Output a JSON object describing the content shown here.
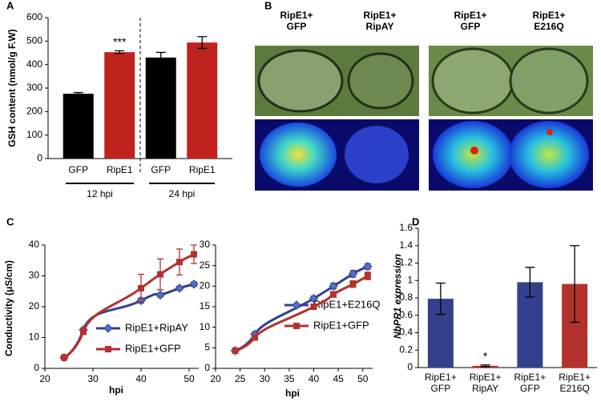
{
  "panel_labels": [
    "A",
    "B",
    "C",
    "D"
  ],
  "images": {
    "labels": [
      "RipE1+\nGFP",
      "RipE1+\nRipAY",
      "RipE1+\nGFP",
      "RipE1+\nE216Q"
    ]
  },
  "chart_data": [
    {
      "type": "bar",
      "ylabel": "GSH content (nmol/g F.W)",
      "categories": [
        "GFP",
        "RipE1",
        "GFP",
        "RipE1"
      ],
      "values": [
        276,
        453,
        430,
        494
      ],
      "errors": [
        5,
        6,
        22,
        25
      ],
      "colors": [
        "#000000",
        "#c0231e",
        "#000000",
        "#c0231e"
      ],
      "ylim": [
        0,
        600
      ],
      "yticks": [
        0,
        100,
        200,
        300,
        400,
        500,
        600
      ],
      "annotations": [
        "***"
      ],
      "groups": [
        "12 hpi",
        "24 hpi"
      ]
    },
    {
      "type": "line",
      "ylabel": "Conductivity (μS/cm)",
      "xlabel": "hpi",
      "x": [
        24,
        28,
        40,
        44,
        48,
        51
      ],
      "series": [
        {
          "name": "RipE1+RipAY",
          "color": "#33418c",
          "marker": "diamond",
          "values": [
            3.5,
            12.5,
            22,
            23.8,
            26,
            27.3
          ],
          "errors": [
            0.5,
            0.6,
            0.8,
            0.6,
            0.6,
            0.7
          ]
        },
        {
          "name": "RipE1+GFP",
          "color": "#b3322d",
          "marker": "square",
          "values": [
            3.5,
            12,
            26,
            30.5,
            34.5,
            37
          ],
          "errors": [
            0.5,
            1,
            4.5,
            5,
            4.2,
            3
          ]
        }
      ],
      "xlim": [
        20,
        52
      ],
      "xticks": [
        20,
        30,
        40,
        50
      ],
      "ylim": [
        0,
        40
      ],
      "yticks": [
        0,
        10,
        20,
        30,
        40
      ]
    },
    {
      "type": "line",
      "xlabel": "hpi",
      "x": [
        24,
        28,
        40,
        44,
        48,
        51
      ],
      "series": [
        {
          "name": "RipE1+E216Q",
          "color": "#33418c",
          "marker": "diamond",
          "values": [
            4.3,
            8.3,
            17,
            20,
            23,
            24.8
          ],
          "errors": [
            0.4,
            0.5,
            0.6,
            0.7,
            0.8,
            0.7
          ]
        },
        {
          "name": "RipE1+GFP",
          "color": "#b3322d",
          "marker": "square",
          "values": [
            4.3,
            7.5,
            15,
            18,
            20.5,
            22.5
          ],
          "errors": [
            0.3,
            0.5,
            0.6,
            0.7,
            0.8,
            0.9
          ]
        }
      ],
      "xlim": [
        20,
        52
      ],
      "xticks": [
        20,
        25,
        30,
        35,
        40,
        45,
        50
      ],
      "ylim": [
        0,
        30
      ],
      "yticks": [
        0,
        5,
        10,
        15,
        20,
        25,
        30
      ]
    },
    {
      "type": "bar",
      "ylabel": "NbPR1 expression",
      "categories": [
        "RipE1+\nGFP",
        "RipE1+\nRipAY",
        "RipE1+\nGFP",
        "RipE1+\nE216Q"
      ],
      "values": [
        0.79,
        0.02,
        0.98,
        0.96
      ],
      "errors": [
        0.18,
        0.01,
        0.17,
        0.44
      ],
      "colors": [
        "#33418c",
        "#b3322d",
        "#33418c",
        "#b3322d"
      ],
      "ylim": [
        0,
        1.6
      ],
      "yticks": [
        0,
        0.2,
        0.4,
        0.6,
        0.8,
        1,
        1.2,
        1.4,
        1.6
      ],
      "annotations": [
        "*"
      ]
    }
  ]
}
